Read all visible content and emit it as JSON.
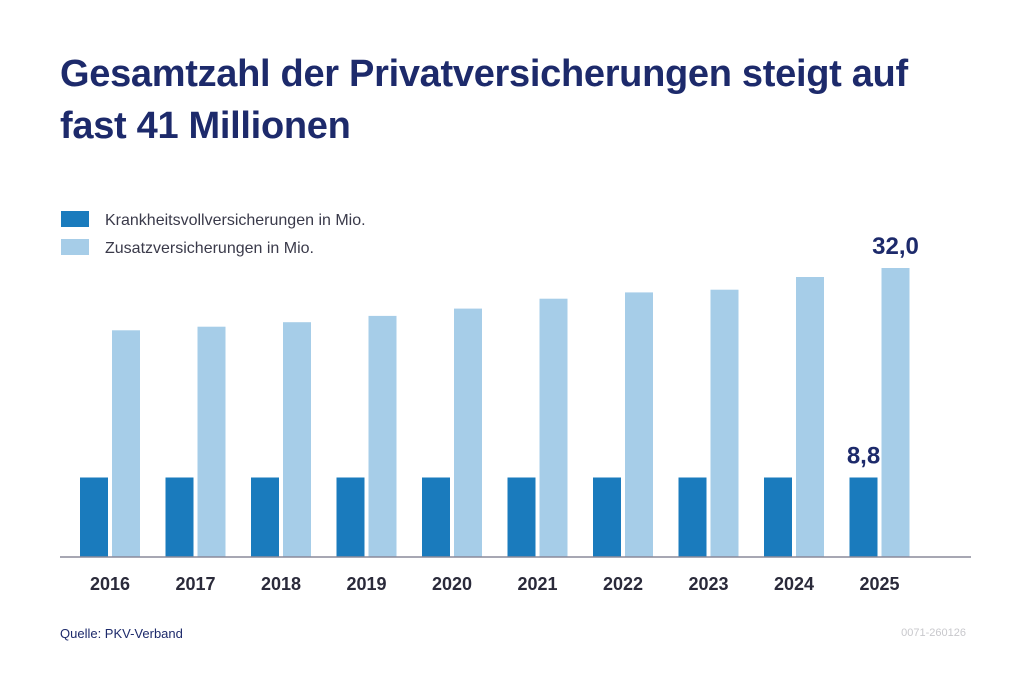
{
  "title": "Gesamtzahl der Privatversicherungen steigt auf fast 41 Millionen",
  "source": "Quelle: PKV-Verband",
  "code": "0071-260126",
  "colors": {
    "full": "#1a7bbd",
    "supplementary": "#a6cde8",
    "title": "#1d2a6b",
    "axis": "#8a8a9a"
  },
  "chart_data": {
    "type": "bar",
    "categories": [
      "2016",
      "2017",
      "2018",
      "2019",
      "2020",
      "2021",
      "2022",
      "2023",
      "2024",
      "2025"
    ],
    "series": [
      {
        "name": "Krankheitsvollversicherungen in Mio.",
        "values": [
          8.8,
          8.8,
          8.8,
          8.8,
          8.8,
          8.8,
          8.8,
          8.8,
          8.8,
          8.8
        ]
      },
      {
        "name": "Zusatzversicherungen in Mio.",
        "values": [
          25.1,
          25.5,
          26.0,
          26.7,
          27.5,
          28.6,
          29.3,
          29.6,
          31.0,
          32.0
        ]
      }
    ],
    "data_labels": [
      {
        "series": 0,
        "index": 9,
        "text": "8,8"
      },
      {
        "series": 1,
        "index": 9,
        "text": "32,0"
      }
    ],
    "ylim": [
      0,
      32.0
    ],
    "grid": false,
    "legend": "top-left"
  }
}
